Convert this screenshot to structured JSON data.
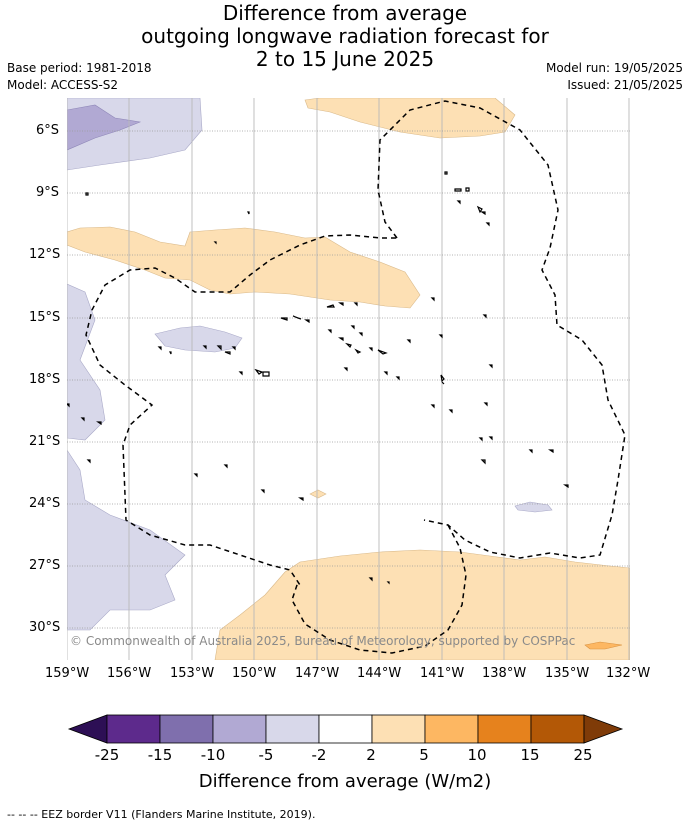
{
  "title": {
    "line1": "Difference from average",
    "line2": "outgoing longwave radiation forecast for",
    "line3": "2 to 15 June 2025"
  },
  "meta": {
    "base_period": "Base period: 1981-2018",
    "model": "Model: ACCESS-S2",
    "model_run": "Model run: 19/05/2025",
    "issued": "Issued: 21/05/2025"
  },
  "map": {
    "lat_labels": [
      "6°S",
      "9°S",
      "12°S",
      "15°S",
      "18°S",
      "21°S",
      "24°S",
      "27°S",
      "30°S"
    ],
    "lon_labels": [
      "159°W",
      "156°W",
      "153°W",
      "150°W",
      "147°W",
      "144°W",
      "141°W",
      "138°W",
      "135°W",
      "132°W"
    ],
    "copyright": "© Commonwealth of Australia 2025, Bureau of Meteorology, supported by COSPPac"
  },
  "colorbar": {
    "label": "Difference from average (W/m2)",
    "ticks": [
      "-25",
      "-15",
      "-10",
      "-5",
      "-2",
      "2",
      "5",
      "10",
      "15",
      "25"
    ],
    "colors": [
      "#2d0f55",
      "#5d2a8c",
      "#7f6fad",
      "#b1a9d3",
      "#d8d8ea",
      "#ffffff",
      "#fde0b4",
      "#fdb762",
      "#e6821d",
      "#b35806",
      "#7f3b08"
    ]
  },
  "footer": {
    "legend_text": "-- -- -- EEZ border V11 (Flanders Marine Institute, 2019)."
  }
}
